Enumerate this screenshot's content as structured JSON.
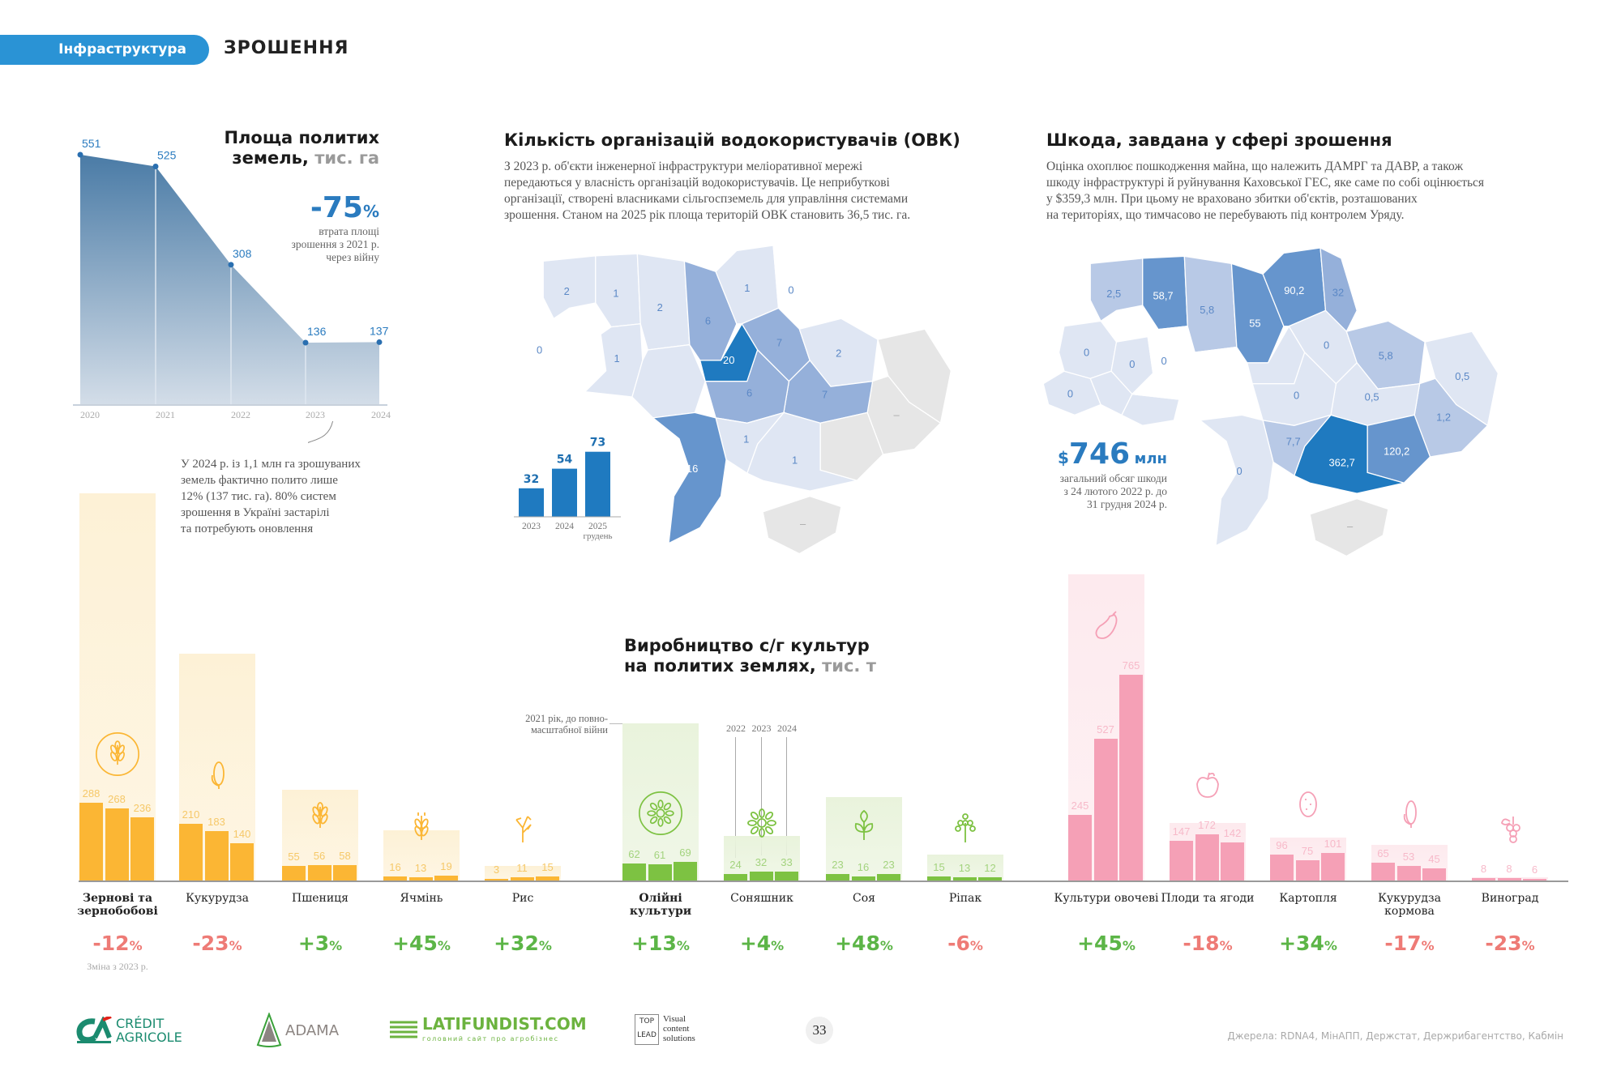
{
  "header": {
    "category": "Інфраструктура",
    "section": "ЗРОШЕННЯ"
  },
  "area_block": {
    "title_line1": "Площа политих",
    "title_line2": "земель,",
    "title_unit": "тис. га",
    "headline_value": "-75",
    "headline_unit": "%",
    "headline_caption": [
      "втрата площі",
      "зрошення з 2021 р.",
      "через війну"
    ],
    "note": [
      "У 2024 р. із 1,1 млн га зрошуваних",
      "земель фактично полито лише",
      "12% (137 тис. га). 80% систем",
      "зрошення в Україні застарілі",
      "та потребують оновлення"
    ]
  },
  "ovk": {
    "title": "Кількість організацій водокористувачів (ОВК)",
    "text": [
      "З 2023 р. об'єкти інженерної інфраструктури меліоративної мережі",
      "передаються у власність організацій водокористувачів. Це неприбуткові",
      "організації, створені власниками сільгоспземель для управління системами",
      "зрошення. Станом на 2025 рік площа територій ОВК становить 36,5 тис. га."
    ]
  },
  "damage": {
    "title": "Шкода, завдана у сфері зрошення",
    "text": [
      "Оцінка охоплює пошкодження майна, що належить ДАМРГ та ДАВР, а також",
      "шкоду інфраструктурі й руйнування Каховської ГЕС, яке саме по собі оцінюється",
      "у $359,3 млн. При цьому не враховано збитки об'єктів, розташованих",
      "на територіях, що тимчасово не перебувають під контролем Уряду."
    ],
    "total_currency": "$",
    "total_value": "746",
    "total_unit": "млн",
    "total_caption": [
      "загальний обсяг шкоди",
      "з 24 лютого 2022 р. до",
      "31 грудня 2024 р."
    ]
  },
  "maps": {
    "shades": {
      "W": "#ffffff",
      "L": "#dfe6f3",
      "M2": "#b8c9e6",
      "M": "#95b0da",
      "D2": "#6695cd",
      "D": "#1f7ac0",
      "G": "#e6e6e6"
    },
    "ovk": {
      "regions": [
        {
          "shade": "W",
          "value": null
        },
        {
          "shade": "W",
          "value": "0"
        },
        {
          "shade": "L",
          "value": "2"
        },
        {
          "shade": "L",
          "value": "1"
        },
        {
          "shade": "W",
          "value": null
        },
        {
          "shade": "W",
          "value": null
        },
        {
          "shade": "W",
          "value": null
        },
        {
          "shade": "L",
          "value": "1"
        },
        {
          "shade": "L",
          "value": "2"
        },
        {
          "shade": "L",
          "value": null
        },
        {
          "shade": "M",
          "value": "6"
        },
        {
          "shade": "L",
          "value": "1"
        },
        {
          "shade": "W",
          "value": "0"
        },
        {
          "shade": "D",
          "value": "20"
        },
        {
          "shade": "M",
          "value": "7"
        },
        {
          "shade": "L",
          "value": "2"
        },
        {
          "shade": "G",
          "value": null
        },
        {
          "shade": "G",
          "value": "–"
        },
        {
          "shade": "M",
          "value": "7"
        },
        {
          "shade": "M",
          "value": "6"
        },
        {
          "shade": "G",
          "value": null
        },
        {
          "shade": "L",
          "value": "1"
        },
        {
          "shade": "L",
          "value": "1"
        },
        {
          "shade": "D2",
          "value": "16"
        },
        {
          "shade": "G",
          "value": "–"
        }
      ]
    },
    "damage": {
      "regions": [
        {
          "shade": "L",
          "value": "0"
        },
        {
          "shade": "L",
          "value": "0"
        },
        {
          "shade": "M2",
          "value": "2,5"
        },
        {
          "shade": "D2",
          "value": "58,7"
        },
        {
          "shade": "L",
          "value": "0"
        },
        {
          "shade": "L",
          "value": null
        },
        {
          "shade": "L",
          "value": null
        },
        {
          "shade": "W",
          "value": "0"
        },
        {
          "shade": "M2",
          "value": "5,8"
        },
        {
          "shade": "W",
          "value": null
        },
        {
          "shade": "D2",
          "value": "55"
        },
        {
          "shade": "D2",
          "value": "90,2"
        },
        {
          "shade": "M",
          "value": "32"
        },
        {
          "shade": "L",
          "value": null
        },
        {
          "shade": "L",
          "value": "0"
        },
        {
          "shade": "M2",
          "value": "5,8"
        },
        {
          "shade": "L",
          "value": "0,5"
        },
        {
          "shade": "M2",
          "value": "1,2"
        },
        {
          "shade": "L",
          "value": "0,5"
        },
        {
          "shade": "L",
          "value": "0"
        },
        {
          "shade": "D2",
          "value": "120,2"
        },
        {
          "shade": "D",
          "value": "362,7"
        },
        {
          "shade": "M2",
          "value": "7,7"
        },
        {
          "shade": "L",
          "value": "0"
        },
        {
          "shade": "G",
          "value": "–"
        }
      ]
    }
  },
  "chart_data": [
    {
      "type": "area",
      "title": "Площа политих земель, тис. га",
      "categories": [
        "2020",
        "2021",
        "2022",
        "2023",
        "2024"
      ],
      "values": [
        551,
        525,
        308,
        136,
        137
      ],
      "ylim": [
        0,
        551
      ],
      "grid": false,
      "color": "#4a7ba6"
    },
    {
      "type": "bar",
      "categories": [
        "2023",
        "2024",
        "2025"
      ],
      "category_sublabels": [
        "",
        "",
        "грудень"
      ],
      "values": [
        32,
        54,
        73
      ],
      "color": "#1f7ac0"
    },
    {
      "type": "bar",
      "title": "Виробництво с/г культур на политих землях, тис. т",
      "title_line1": "Виробництво с/г культур",
      "title_line2": "на политих землях,",
      "title_unit": "тис. т",
      "series_years": [
        "2022",
        "2023",
        "2024"
      ],
      "baseline_note": [
        "2021 рік, до повно-",
        "масштабної війни"
      ],
      "change_note": "Зміна з 2023 р.",
      "colors": {
        "grain": "#fbb634",
        "oil": "#7dc242",
        "veg": "#f5a0b6",
        "up": "#5cb547",
        "down": "#ee7b76"
      },
      "groups": [
        {
          "label": "Зернові та зернобобові",
          "family": "grain",
          "headline": true,
          "icon": "wheat-icon",
          "values": [
            288,
            268,
            236
          ],
          "value_2021": 1440,
          "change": "-12"
        },
        {
          "label": "Кукурудза",
          "family": "grain",
          "icon": "corn-icon",
          "values": [
            210,
            183,
            140
          ],
          "value_2021": 843,
          "change": "-23"
        },
        {
          "label": "Пшениця",
          "family": "grain",
          "icon": "wheat-icon",
          "values": [
            55,
            56,
            58
          ],
          "value_2021": 338,
          "change": "+3"
        },
        {
          "label": "Ячмінь",
          "family": "grain",
          "icon": "barley-icon",
          "values": [
            16,
            13,
            19
          ],
          "value_2021": 186,
          "change": "+45"
        },
        {
          "label": "Рис",
          "family": "grain",
          "icon": "rice-icon",
          "values": [
            3,
            11,
            15
          ],
          "value_2021": 54,
          "change": "+32"
        },
        {
          "label": "Олійні культури",
          "family": "oil",
          "headline": true,
          "icon": "sunflower-icon",
          "values": [
            62,
            61,
            69
          ],
          "value_2021": 583,
          "change": "+13"
        },
        {
          "label": "Соняшник",
          "family": "oil",
          "icon": "sunflower-icon",
          "values": [
            24,
            32,
            33
          ],
          "value_2021": 167,
          "change": "+4"
        },
        {
          "label": "Соя",
          "family": "oil",
          "icon": "soy-leaf-icon",
          "values": [
            23,
            16,
            23
          ],
          "value_2021": 311,
          "change": "+48"
        },
        {
          "label": "Ріпак",
          "family": "oil",
          "icon": "rapeseed-icon",
          "values": [
            15,
            13,
            12
          ],
          "value_2021": 97,
          "change": "-6"
        },
        {
          "label": "Культури овочеві",
          "family": "veg",
          "icon": "eggplant-icon",
          "values": [
            245,
            527,
            765
          ],
          "value_2021": 1138,
          "change": "+45"
        },
        {
          "label": "Плоди та ягоди",
          "family": "veg",
          "icon": "apple-icon",
          "values": [
            147,
            172,
            142
          ],
          "value_2021": 214,
          "change": "-18"
        },
        {
          "label": "Картопля",
          "family": "veg",
          "icon": "potato-icon",
          "values": [
            96,
            75,
            101
          ],
          "value_2021": 159,
          "change": "+34"
        },
        {
          "label": "Кукурудза кормова",
          "family": "veg",
          "icon": "corn-icon",
          "values": [
            65,
            53,
            45
          ],
          "value_2021": 132,
          "change": "-17"
        },
        {
          "label": "Виноград",
          "family": "veg",
          "icon": "grapes-icon",
          "values": [
            8,
            8,
            6
          ],
          "value_2021": 12,
          "change": "-23"
        }
      ],
      "change_unit": "%"
    }
  ],
  "footer": {
    "logos": [
      "CRÉDIT AGRICOLE",
      "ADAMA",
      "LATIFUNDIST.COM",
      "головний сайт про агробізнес",
      "TOP LEAD",
      "Visual content solutions"
    ],
    "page_number": "33",
    "sources": "Джерела: RDNA4, МінАПП, Держстат, Держрибагентство, Кабмін"
  }
}
